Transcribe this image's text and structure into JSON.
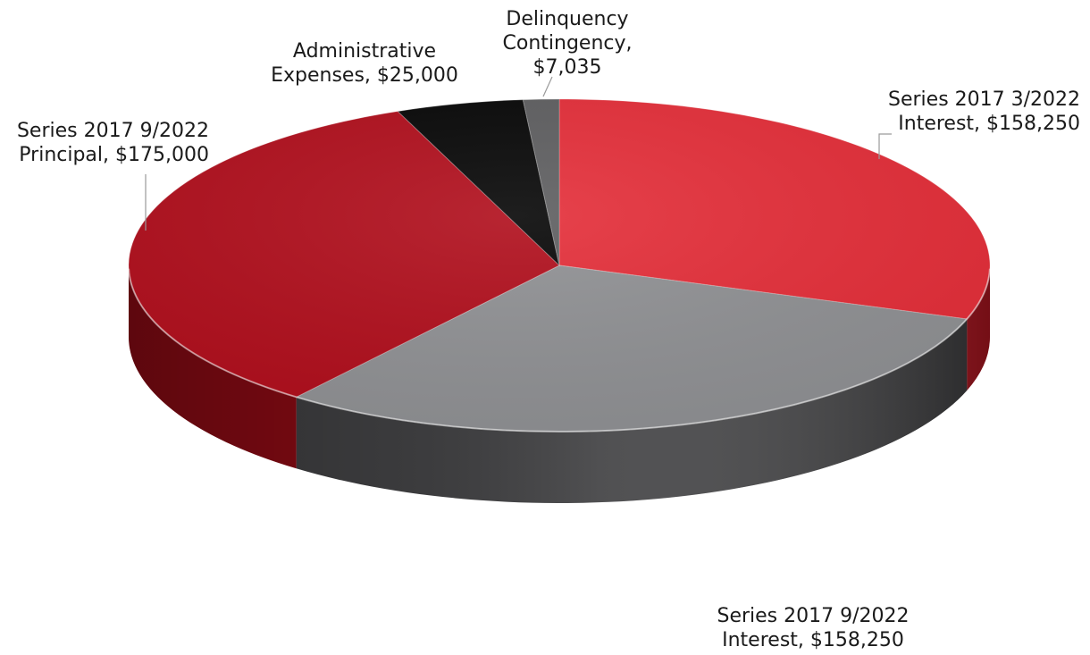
{
  "chart_data": {
    "type": "pie",
    "style": "3d",
    "slices": [
      {
        "label_lines": [
          "Series 2017 3/2022",
          "Interest, $158,250"
        ],
        "label": "Series 2017 3/2022 Interest",
        "value": 158250,
        "color": "#e42d38",
        "side_color": "#b31621"
      },
      {
        "label_lines": [
          "Series 2017 9/2022",
          "Interest, $158,250"
        ],
        "label": "Series 2017 9/2022 Interest",
        "value": 158250,
        "color": "#8f9093",
        "side_color": "#3d3d3f"
      },
      {
        "label_lines": [
          "Series 2017 9/2022",
          "Principal, $175,000"
        ],
        "label": "Series 2017 9/2022 Principal",
        "value": 175000,
        "color": "#b00d1b",
        "side_color": "#820a13"
      },
      {
        "label_lines": [
          "Administrative",
          "Expenses, $25,000"
        ],
        "label": "Administrative Expenses",
        "value": 25000,
        "color": "#050505",
        "side_color": "#000000"
      },
      {
        "label_lines": [
          "Delinquency",
          "Contingency,",
          "$7,035"
        ],
        "label": "Delinquency Contingency",
        "value": 7035,
        "color": "#5d5d5f",
        "side_color": "#3a3a3c"
      }
    ]
  }
}
